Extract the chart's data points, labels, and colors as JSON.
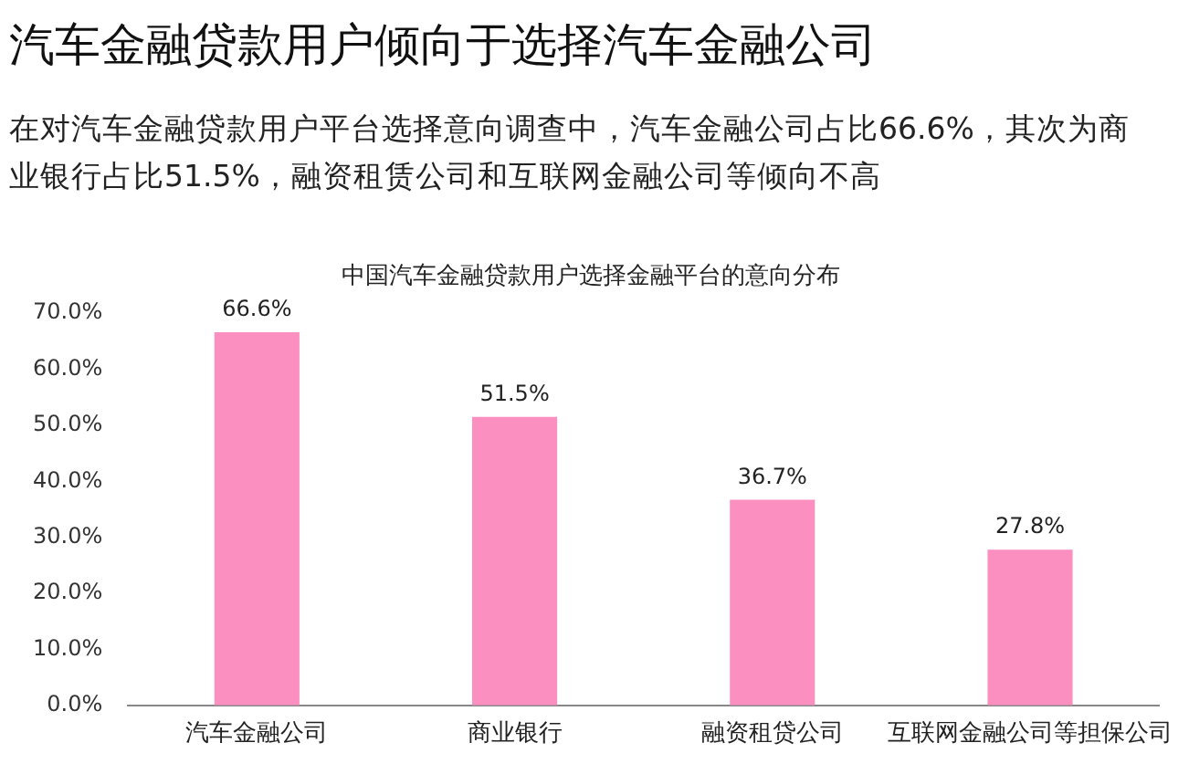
{
  "chart_data": {
    "type": "bar",
    "title": "汽车金融贷款用户倾向于选择汽车金融公司",
    "subtitle": "中国汽车金融贷款用户选择金融平台的意向分布",
    "annotations": [
      "在对汽车金融贷款用户平台选择意向调查中，汽车金融公司占比66.6%，其次为商业银行占比51.5%，融资租赁公司和互联网金融公司等倾向不高"
    ],
    "categories": [
      "汽车金融公司",
      "商业银行",
      "融资租贷公司",
      "互联网金融公司等担保公司"
    ],
    "values": [
      66.6,
      51.5,
      36.7,
      27.8
    ],
    "color": "#fb8fc0",
    "value_labels": [
      "66.6%",
      "51.5%",
      "36.7%",
      "27.8%"
    ],
    "ylim": [
      0,
      70
    ],
    "yticks": [
      {
        "value": 0,
        "label": "0.0%"
      },
      {
        "value": 10,
        "label": "10.0%"
      },
      {
        "value": 20,
        "label": "20.0%"
      },
      {
        "value": 30,
        "label": "30.0%"
      },
      {
        "value": 40,
        "label": "40.0%"
      },
      {
        "value": 50,
        "label": "50.0%"
      },
      {
        "value": 60,
        "label": "60.0%"
      },
      {
        "value": 70,
        "label": "70.0%"
      }
    ],
    "grid": false
  }
}
